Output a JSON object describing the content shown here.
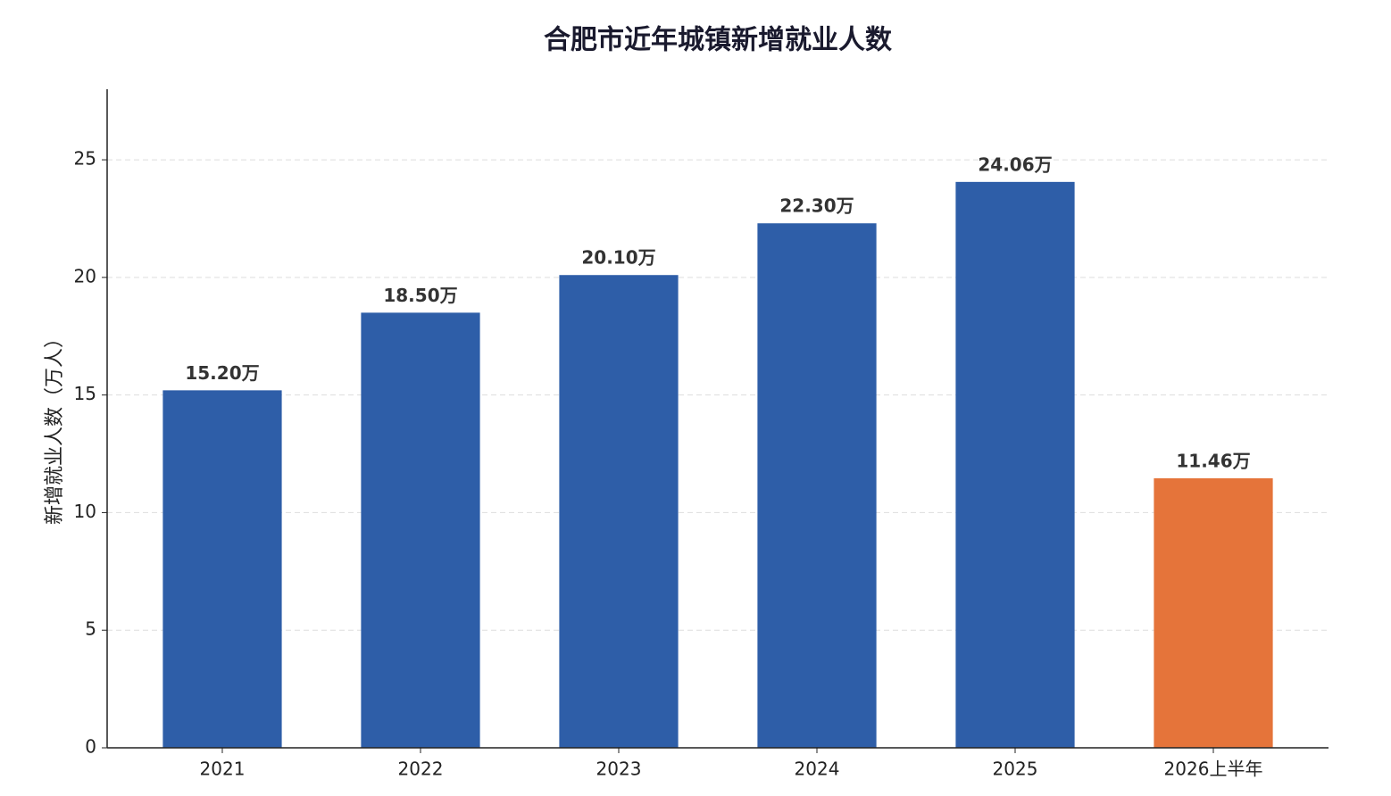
{
  "chart_data": {
    "type": "bar",
    "title": "合肥市近年城镇新增就业人数",
    "y_label": "新增就业人数（万人）",
    "categories": [
      "2021",
      "2022",
      "2023",
      "2024",
      "2025",
      "2026上半年"
    ],
    "values": [
      15.2,
      18.5,
      20.1,
      22.3,
      24.06,
      11.46
    ],
    "value_labels": [
      "15.20万",
      "18.50万",
      "20.10万",
      "22.30万",
      "24.06万",
      "11.46万"
    ],
    "colors": [
      "#2e5ea8",
      "#2e5ea8",
      "#2e5ea8",
      "#2e5ea8",
      "#2e5ea8",
      "#e5743a"
    ],
    "ylim": [
      0,
      28
    ],
    "yticks": [
      0,
      5,
      10,
      15,
      20,
      25
    ],
    "grid": true
  }
}
